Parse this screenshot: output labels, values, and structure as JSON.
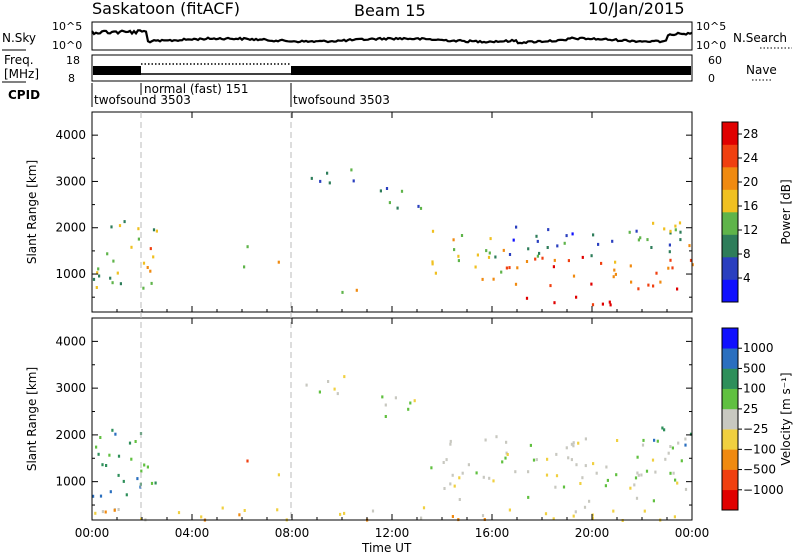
{
  "header": {
    "title": "Saskatoon (fitACF)",
    "beam": "Beam 15",
    "date": "10/Jan/2015"
  },
  "top_panels": {
    "nsky_label": "N.Sky",
    "nsky_tick_top": "10^5",
    "nsky_tick_bottom": "10^0",
    "nsearch_label": "N.Search",
    "nsearch_tick_top": "10^5",
    "nsearch_tick_bottom": "10^0",
    "freq_label_line1": "Freq.",
    "freq_label_line2": "[MHz]",
    "freq_tick_top": "18",
    "freq_tick_bottom": "8",
    "nave_label": "Nave",
    "nave_tick_top": "60",
    "nave_tick_bottom": "0",
    "cpid_label": "CPID",
    "cpid_segments": [
      {
        "label": "twofsound 3503",
        "start_hour": 0,
        "end_hour": 2
      },
      {
        "label": "normal (fast) 151",
        "start_hour": 2,
        "end_hour": 8
      },
      {
        "label": "twofsound 3503",
        "start_hour": 8,
        "end_hour": 24
      }
    ]
  },
  "chart_data": [
    {
      "type": "heatmap",
      "name": "power",
      "ylabel": "Slant Range [km]",
      "ylim": [
        180,
        4500
      ],
      "yticks": [
        "1000",
        "2000",
        "3000",
        "4000"
      ],
      "ytick_values": [
        1000,
        2000,
        3000,
        4000
      ],
      "colorbar_label": "Power [dB]",
      "colorbar_ticks": [
        "4",
        "8",
        "12",
        "16",
        "20",
        "24",
        "28"
      ],
      "colorbar_tick_values": [
        4,
        8,
        12,
        16,
        20,
        24,
        28
      ],
      "colorbar_range": [
        0,
        30
      ],
      "colorbar_colors": [
        "#1010ff",
        "#2a3fbf",
        "#2e7d5a",
        "#5fb44a",
        "#f0c020",
        "#f08a10",
        "#f04010",
        "#e00000"
      ],
      "scatter_regions": [
        {
          "t0": 0.0,
          "t1": 2.6,
          "r0": 700,
          "r1": 2300,
          "level": 14
        },
        {
          "t0": 1.9,
          "t1": 2.5,
          "r0": 850,
          "r1": 1350,
          "level": 22
        },
        {
          "t0": 2.3,
          "t1": 2.6,
          "r0": 1300,
          "r1": 1800,
          "level": 20
        },
        {
          "t0": 5.8,
          "t1": 6.3,
          "r0": 1100,
          "r1": 1700,
          "level": 14
        },
        {
          "t0": 7.3,
          "t1": 7.7,
          "r0": 1100,
          "r1": 1500,
          "level": 16
        },
        {
          "t0": 8.5,
          "t1": 10.5,
          "r0": 2800,
          "r1": 3300,
          "level": 8
        },
        {
          "t0": 11.5,
          "t1": 13.3,
          "r0": 2300,
          "r1": 3000,
          "level": 10
        },
        {
          "t0": 9.5,
          "t1": 11.0,
          "r0": 450,
          "r1": 700,
          "level": 18
        },
        {
          "t0": 13.5,
          "t1": 16.5,
          "r0": 900,
          "r1": 2000,
          "level": 18
        },
        {
          "t0": 15.5,
          "t1": 24.0,
          "r0": 700,
          "r1": 1400,
          "level": 22
        },
        {
          "t0": 17.0,
          "t1": 21.0,
          "r0": 350,
          "r1": 650,
          "level": 28
        },
        {
          "t0": 16.0,
          "t1": 24.0,
          "r0": 1400,
          "r1": 2100,
          "level": 8
        },
        {
          "t0": 22.3,
          "t1": 24.0,
          "r0": 1600,
          "r1": 2200,
          "level": 22
        }
      ]
    },
    {
      "type": "heatmap",
      "name": "velocity",
      "ylabel": "Slant Range [km]",
      "xlabel": "Time UT",
      "ylim": [
        180,
        4500
      ],
      "yticks": [
        "1000",
        "2000",
        "3000",
        "4000"
      ],
      "ytick_values": [
        1000,
        2000,
        3000,
        4000
      ],
      "xticks": [
        "00:00",
        "04:00",
        "08:00",
        "12:00",
        "16:00",
        "20:00",
        "00:00"
      ],
      "xtick_values": [
        0,
        4,
        8,
        12,
        16,
        20,
        24
      ],
      "xlim": [
        0,
        24
      ],
      "colorbar_label": "Velocity [m s⁻¹]",
      "colorbar_ticks": [
        "1000",
        "500",
        "100",
        "25",
        "−25",
        "−100",
        "−500",
        "−1000"
      ],
      "colorbar_colors": [
        "#1010ff",
        "#2a6fbf",
        "#2e8f5a",
        "#60c040",
        "#c8c8c0",
        "#f0d040",
        "#f08a10",
        "#f04010",
        "#e00000"
      ],
      "scatter_regions": [
        {
          "t0": 0.0,
          "t1": 2.6,
          "r0": 700,
          "r1": 2300,
          "level": 2
        },
        {
          "t0": 1.9,
          "t1": 2.6,
          "r0": 800,
          "r1": 1800,
          "level": 3
        },
        {
          "t0": 5.8,
          "t1": 6.2,
          "r0": 1000,
          "r1": 1600,
          "level": 6
        },
        {
          "t0": 7.3,
          "t1": 7.7,
          "r0": 1100,
          "r1": 1500,
          "level": 6
        },
        {
          "t0": 8.5,
          "t1": 10.5,
          "r0": 2800,
          "r1": 3300,
          "level": 4
        },
        {
          "t0": 11.5,
          "t1": 13.3,
          "r0": 2300,
          "r1": 3000,
          "level": 4
        },
        {
          "t0": 13.5,
          "t1": 24.0,
          "r0": 600,
          "r1": 2000,
          "level": 4
        },
        {
          "t0": 22.3,
          "t1": 24.0,
          "r0": 1600,
          "r1": 2200,
          "level": 2
        },
        {
          "t0": 0.0,
          "t1": 24.0,
          "r0": 200,
          "r1": 500,
          "level": 5
        }
      ]
    }
  ]
}
